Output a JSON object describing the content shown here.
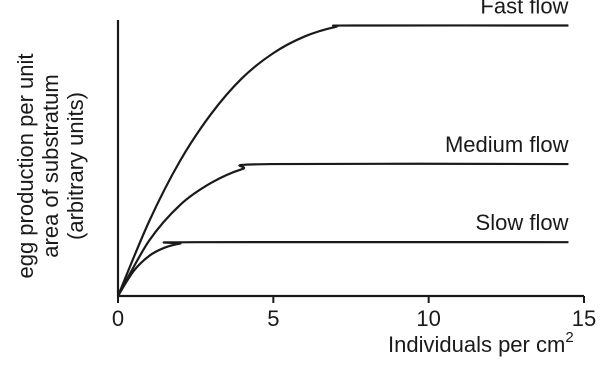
{
  "chart_data": {
    "type": "line",
    "title": "",
    "xlabel": "Individuals per cm",
    "xlabel_superscript": "2",
    "ylabel_lines": [
      "egg production per unit",
      "area of substratum",
      "(arbitrary units)"
    ],
    "xlim": [
      0,
      15
    ],
    "ylim": [
      0,
      10
    ],
    "x_ticks": [
      0,
      5,
      10,
      15
    ],
    "grid": false,
    "series": [
      {
        "name": "Fast flow",
        "x": [
          0,
          1,
          2,
          3,
          4,
          5,
          6,
          7,
          7.6,
          14.5
        ],
        "y": [
          0,
          2.7,
          4.9,
          6.6,
          7.9,
          8.8,
          9.4,
          9.75,
          9.8,
          9.8
        ]
      },
      {
        "name": "Medium flow",
        "x": [
          0,
          1,
          2,
          3,
          4,
          4.9,
          14.5
        ],
        "y": [
          0,
          2.0,
          3.3,
          4.1,
          4.6,
          4.78,
          4.78
        ]
      },
      {
        "name": "Slow flow",
        "x": [
          0,
          0.5,
          1,
          1.5,
          2,
          2.5,
          14.5
        ],
        "y": [
          0,
          0.9,
          1.45,
          1.75,
          1.9,
          1.95,
          1.95
        ]
      }
    ]
  }
}
